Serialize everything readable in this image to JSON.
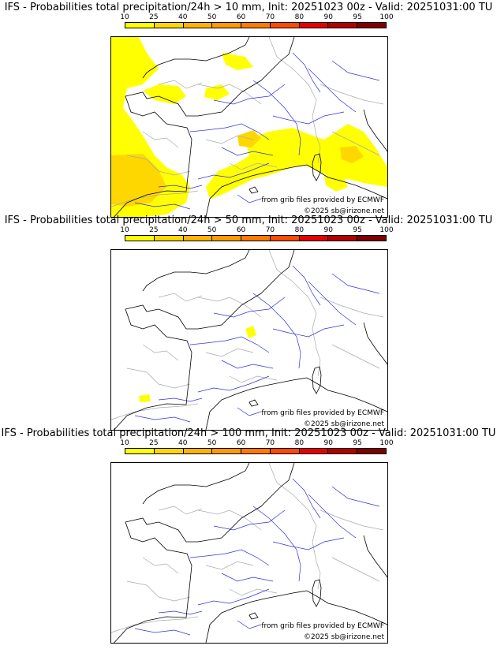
{
  "panels": [
    {
      "title": "IFS - Probabilities total precipitation/24h > 10 mm, Init: 20251023 00z - Valid: 20251031:00 TU",
      "threshold_mm": 10
    },
    {
      "title": "IFS - Probabilities total precipitation/24h > 50 mm, Init: 20251023 00z - Valid: 20251031:00 TU",
      "threshold_mm": 50
    },
    {
      "title": "IFS - Probabilities total precipitation/24h > 100 mm, Init: 20251023 00z - Valid: 20251031:00 TU",
      "threshold_mm": 100
    }
  ],
  "colorbar": {
    "labels": [
      "10",
      "25",
      "40",
      "50",
      "60",
      "70",
      "80",
      "90",
      "95",
      "100"
    ],
    "colors": [
      "#ffff00",
      "#ffd700",
      "#ffb300",
      "#ff9a00",
      "#ff7a00",
      "#ff4a00",
      "#e60000",
      "#b30000",
      "#800000"
    ]
  },
  "credits": {
    "source": "from grib files provided by ECMWF",
    "copyright": "©2025 sb@irizone.net"
  },
  "colors": {
    "coast": "#000000",
    "rivers": "#3030e0",
    "borders": "#aaaaaa"
  }
}
